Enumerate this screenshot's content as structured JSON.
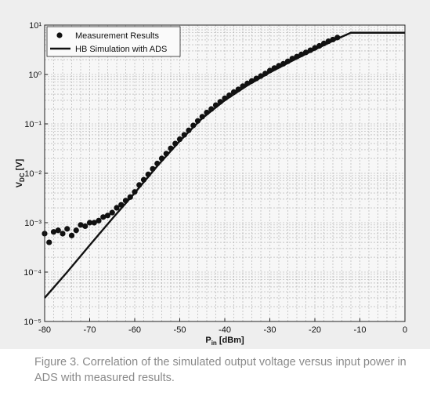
{
  "chart_data": {
    "type": "line",
    "y_label": [
      "V",
      "DC",
      " [V]"
    ],
    "x_label": [
      "P",
      "in",
      " [dBm]"
    ],
    "xlim": [
      -80,
      0
    ],
    "xticks": [
      -80,
      -70,
      -60,
      -50,
      -40,
      -30,
      -20,
      -10,
      0
    ],
    "ylim": [
      1e-05,
      10
    ],
    "yscale": "log",
    "yticks": [
      {
        "value": 1e-05,
        "label": "10⁻⁵"
      },
      {
        "value": 0.0001,
        "label": "10⁻⁴"
      },
      {
        "value": 0.001,
        "label": "10⁻³"
      },
      {
        "value": 0.01,
        "label": "10⁻²"
      },
      {
        "value": 0.1,
        "label": "10⁻¹"
      },
      {
        "value": 1,
        "label": "10⁰"
      },
      {
        "value": 10,
        "label": "10¹"
      }
    ],
    "grid": true,
    "minor_grid": true,
    "legend": "upper left",
    "series": [
      {
        "name": "Measurement Results",
        "color": "#111111",
        "mode": "markers",
        "x": [
          -80,
          -79,
          -78,
          -77,
          -76,
          -75,
          -74,
          -73,
          -72,
          -71,
          -70,
          -69,
          -68,
          -67,
          -66,
          -65,
          -64,
          -63,
          -62,
          -61,
          -60,
          -59,
          -58,
          -57,
          -56,
          -55,
          -54,
          -53,
          -52,
          -51,
          -50,
          -49,
          -48,
          -47,
          -46,
          -45,
          -44,
          -43,
          -42,
          -41,
          -40,
          -39,
          -38,
          -37,
          -36,
          -35,
          -34,
          -33,
          -32,
          -31,
          -30,
          -29,
          -28,
          -27,
          -26,
          -25,
          -24,
          -23,
          -22,
          -21,
          -20,
          -19,
          -18,
          -17,
          -16,
          -15
        ],
        "values": [
          0.0006,
          0.0004,
          0.00065,
          0.0007,
          0.0006,
          0.00075,
          0.00055,
          0.0007,
          0.0009,
          0.00085,
          0.001,
          0.001,
          0.0011,
          0.0013,
          0.0014,
          0.0016,
          0.002,
          0.0023,
          0.0028,
          0.0033,
          0.0042,
          0.0058,
          0.0074,
          0.0095,
          0.0123,
          0.0158,
          0.02,
          0.025,
          0.032,
          0.04,
          0.049,
          0.06,
          0.074,
          0.093,
          0.115,
          0.14,
          0.17,
          0.2,
          0.24,
          0.28,
          0.33,
          0.38,
          0.44,
          0.5,
          0.58,
          0.66,
          0.74,
          0.83,
          0.93,
          1.05,
          1.2,
          1.35,
          1.5,
          1.65,
          1.85,
          2.1,
          2.3,
          2.55,
          2.8,
          3.1,
          3.45,
          3.8,
          4.25,
          4.7,
          5.1,
          5.6
        ]
      },
      {
        "name": "HB Simulation with ADS",
        "color": "#111111",
        "mode": "line",
        "x": [
          -80,
          -75,
          -70,
          -65,
          -60,
          -55,
          -50,
          -45,
          -40,
          -35,
          -30,
          -25,
          -20,
          -15,
          -12,
          0
        ],
        "values": [
          3e-05,
          0.0001,
          0.00035,
          0.0012,
          0.004,
          0.014,
          0.045,
          0.13,
          0.3,
          0.6,
          1.1,
          1.9,
          3.2,
          5.3,
          7,
          7
        ]
      }
    ]
  },
  "caption": "Figure 3. Correlation of the simulated output voltage versus input power in ADS with measured results."
}
